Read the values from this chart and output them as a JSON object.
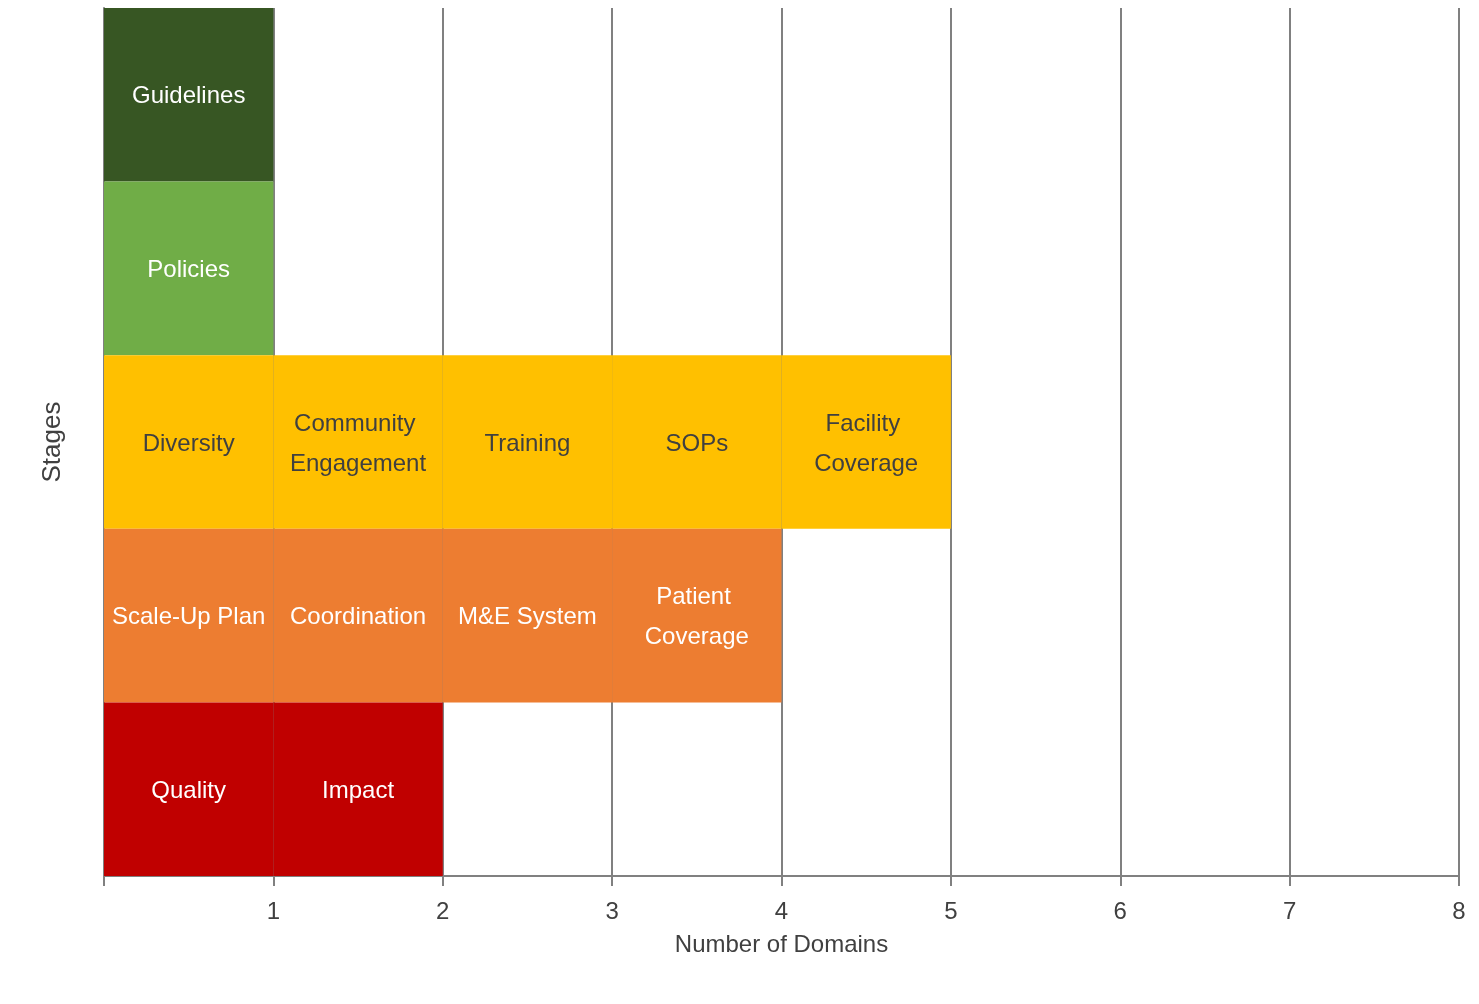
{
  "chart_data": {
    "type": "bar",
    "orientation": "horizontal",
    "stacked": true,
    "categories": [
      null,
      null,
      null,
      null,
      null
    ],
    "xlabel": "Number of Domains",
    "ylabel": "Stages",
    "xlim": [
      0,
      8
    ],
    "xticks": [
      {
        "value": 0,
        "label": null
      },
      1,
      2,
      3,
      4,
      5,
      6,
      7,
      8
    ],
    "grid": "x",
    "series": [
      {
        "colors": [
          "#375623",
          "#70ad47",
          "#ffc000",
          "#ed7d31",
          "#c00000"
        ],
        "values": [
          1,
          1,
          1,
          1,
          1
        ],
        "value_labels": [
          "Guidelines",
          "Policies",
          "Diversity",
          "Scale-Up Plan",
          "Quality"
        ]
      },
      {
        "colors": [
          null,
          null,
          "#ffc000",
          "#ed7d31",
          "#c00000"
        ],
        "values": [
          null,
          null,
          1,
          1,
          1
        ],
        "value_labels": [
          null,
          null,
          "Community Engagement",
          "Coordination",
          "Impact"
        ]
      },
      {
        "colors": [
          null,
          null,
          "#ffc000",
          "#ed7d31",
          null
        ],
        "values": [
          null,
          null,
          1,
          1,
          null
        ],
        "value_labels": [
          null,
          null,
          "Training",
          "M&E System",
          null
        ]
      },
      {
        "colors": [
          null,
          null,
          "#ffc000",
          "#ed7d31",
          null
        ],
        "values": [
          null,
          null,
          1,
          1,
          null
        ],
        "value_labels": [
          null,
          null,
          "SOPs",
          "Patient Coverage",
          null
        ]
      },
      {
        "colors": [
          null,
          null,
          "#ffc000",
          null,
          null
        ],
        "values": [
          null,
          null,
          1,
          null,
          null
        ],
        "value_labels": [
          null,
          null,
          "Facility Coverage",
          null,
          null
        ]
      }
    ]
  }
}
